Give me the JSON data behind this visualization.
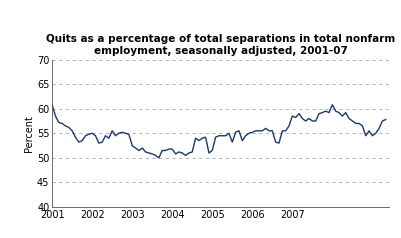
{
  "title": "Quits as a percentage of total separations in total nonfarm\nemployment, seasonally adjusted, 2001-07",
  "ylabel": "Percent",
  "ylim": [
    40,
    70
  ],
  "yticks": [
    40,
    45,
    50,
    55,
    60,
    65,
    70
  ],
  "line_color": "#1a3a6b",
  "line_width": 1.0,
  "background_color": "#ffffff",
  "values": [
    60.8,
    58.5,
    57.2,
    57.0,
    56.5,
    56.2,
    55.5,
    54.2,
    53.2,
    53.5,
    54.5,
    54.8,
    55.0,
    54.5,
    53.0,
    53.2,
    54.5,
    54.0,
    55.5,
    54.5,
    55.0,
    55.2,
    55.0,
    54.8,
    52.5,
    52.0,
    51.5,
    52.0,
    51.2,
    51.0,
    50.8,
    50.5,
    50.0,
    51.5,
    51.5,
    51.8,
    51.8,
    50.8,
    51.2,
    51.0,
    50.5,
    51.0,
    51.2,
    54.0,
    53.5,
    54.0,
    54.2,
    51.0,
    51.5,
    54.2,
    54.5,
    54.5,
    54.5,
    55.0,
    53.2,
    55.2,
    55.5,
    53.5,
    54.5,
    55.0,
    55.2,
    55.5,
    55.5,
    55.5,
    56.0,
    55.5,
    55.5,
    53.2,
    53.0,
    55.5,
    55.5,
    56.5,
    58.5,
    58.2,
    59.0,
    58.0,
    57.5,
    58.0,
    57.5,
    57.5,
    59.0,
    59.2,
    59.5,
    59.2,
    60.8,
    59.5,
    59.2,
    58.5,
    59.2,
    58.0,
    57.5,
    57.0,
    57.0,
    56.5,
    54.5,
    55.5,
    54.5,
    55.0,
    56.0,
    57.5,
    57.8
  ],
  "x_start_year": 2001,
  "xtick_years": [
    2001,
    2002,
    2003,
    2004,
    2005,
    2006,
    2007
  ],
  "title_fontsize": 7.5,
  "tick_fontsize": 7,
  "ylabel_fontsize": 7
}
